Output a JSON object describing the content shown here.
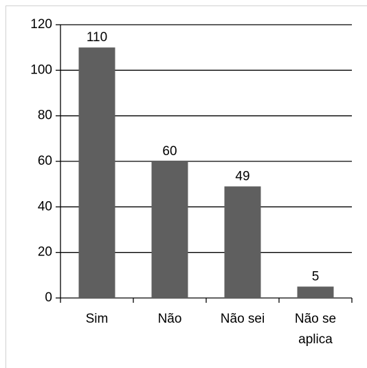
{
  "chart_data": {
    "type": "bar",
    "categories": [
      "Sim",
      "Não",
      "Não sei",
      "Não se aplica"
    ],
    "values": [
      110,
      60,
      49,
      5
    ],
    "color": "#5f5f5f",
    "ylim": [
      0,
      120
    ],
    "yticks": [
      0,
      20,
      40,
      60,
      80,
      100,
      120
    ],
    "grid": true
  }
}
